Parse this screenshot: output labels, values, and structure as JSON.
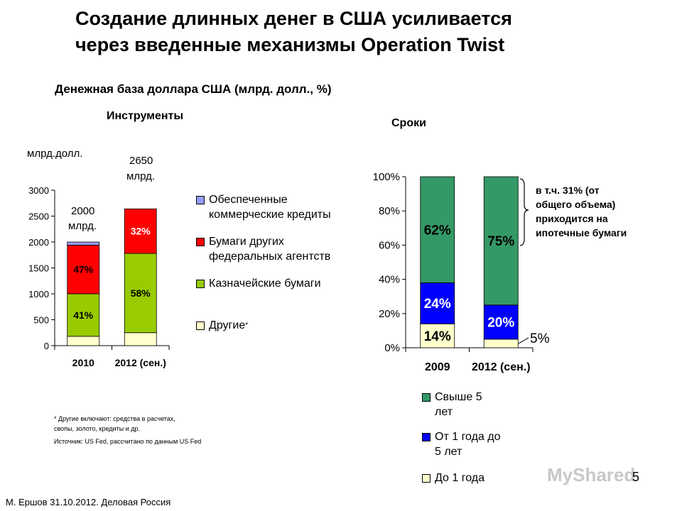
{
  "title_line1": "Создание длинных денег в США усиливается",
  "title_line2": "через введенные механизмы Operation Twist",
  "subtitle": "Денежная база доллара США (млрд. долл., %)",
  "left": {
    "section_title": "Инструменты",
    "unit_label": "млрд.долл.",
    "annot_2010_value": "2000",
    "annot_2010_unit": "млрд.",
    "annot_2012_value": "2650",
    "annot_2012_unit": "млрд.",
    "legend": [
      {
        "line1": "Обеспеченные",
        "line2": "коммерческие кредиты",
        "color": "#9999ff"
      },
      {
        "line1": "Бумаги других",
        "line2": "федеральных агентств",
        "color": "#ff0000"
      },
      {
        "line1": "Казначейские бумаги",
        "line2": "",
        "color": "#99cc00"
      },
      {
        "line1": "Другие",
        "line2": "",
        "sup": "*",
        "color": "#ffffcc"
      }
    ],
    "footnote1": "* Другие включают: средства в расчетах,",
    "footnote2": "свопы, золото, кредиты и др.",
    "source": "Источник: US Fed, рассчитано по данным US Fed"
  },
  "right": {
    "section_title": "Сроки",
    "brace_note": [
      "в т.ч. 31% (от",
      "общего объема)",
      "приходится на",
      "ипотечные бумаги"
    ],
    "legend": [
      {
        "line1": "Свыше 5",
        "line2": "лет",
        "color": "#339966"
      },
      {
        "line1": "От 1 года до",
        "line2": "5 лет",
        "color": "#0000ff"
      },
      {
        "line1": "До 1 года",
        "line2": "",
        "color": "#ffffcc"
      }
    ]
  },
  "footer": "М. Ершов 31.10.2012. Деловая Россия",
  "page_number": "5",
  "logo_text": "MyShared",
  "chart_data": [
    {
      "type": "bar",
      "stacked": true,
      "categories": [
        "2010",
        "2012 (сен.)"
      ],
      "ylim": [
        0,
        3000
      ],
      "yticks": [
        "0",
        "500",
        "1000",
        "1500",
        "2000",
        "2500",
        "3000"
      ],
      "ytick_values": [
        0,
        500,
        1000,
        1500,
        2000,
        2500,
        3000
      ],
      "series": [
        {
          "name": "Другие",
          "values": [
            180,
            250
          ],
          "color": "#ffffcc",
          "labels": [
            "",
            ""
          ]
        },
        {
          "name": "Казначейские бумаги",
          "values": [
            820,
            1530
          ],
          "color": "#99cc00",
          "labels": [
            "41%",
            "58%"
          ],
          "label_colors": [
            "#000000",
            "#000000"
          ]
        },
        {
          "name": "Бумаги других федеральных агентств",
          "values": [
            940,
            860
          ],
          "color": "#ff0000",
          "labels": [
            "47%",
            "32%"
          ],
          "label_colors": [
            "#000000",
            "#ffffff"
          ]
        },
        {
          "name": "Обеспеченные коммерческие кредиты",
          "values": [
            60,
            0
          ],
          "color": "#9999ff",
          "labels": [
            "",
            ""
          ]
        }
      ]
    },
    {
      "type": "bar",
      "stacked": true,
      "categories": [
        "2009",
        "2012 (сен.)"
      ],
      "ylim": [
        0,
        100
      ],
      "yticks": [
        "0%",
        "20%",
        "40%",
        "60%",
        "80%",
        "100%"
      ],
      "ytick_values": [
        0,
        20,
        40,
        60,
        80,
        100
      ],
      "series": [
        {
          "name": "До 1 года",
          "values": [
            14,
            5
          ],
          "color": "#ffffcc",
          "labels": [
            "14%",
            "5%"
          ],
          "label_colors": [
            "#000000",
            "#000000"
          ]
        },
        {
          "name": "От 1 года до 5 лет",
          "values": [
            24,
            20
          ],
          "color": "#0000ff",
          "labels": [
            "24%",
            "20%"
          ],
          "label_colors": [
            "#ffffff",
            "#ffffff"
          ]
        },
        {
          "name": "Свыше 5 лет",
          "values": [
            62,
            75
          ],
          "color": "#339966",
          "labels": [
            "62%",
            "75%"
          ],
          "label_colors": [
            "#000000",
            "#000000"
          ]
        }
      ]
    }
  ]
}
